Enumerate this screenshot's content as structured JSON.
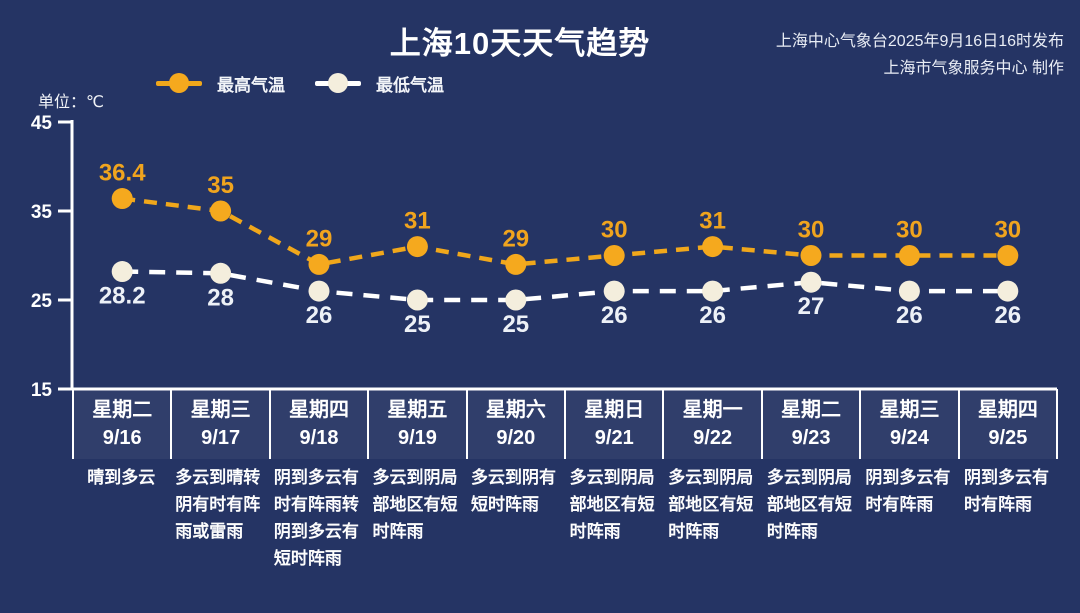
{
  "title": "上海10天天气趋势",
  "source": {
    "line1": "上海中心气象台2025年9月16日16时发布",
    "line2": "上海市气象服务中心 制作"
  },
  "unit_label": "单位：℃",
  "legend": {
    "max_label": "最高气温",
    "min_label": "最低气温"
  },
  "colors": {
    "background": "#253464",
    "axis": "#ffffff",
    "max_line": "#f0a71b",
    "max_point": "#f5a91e",
    "max_label": "#f0a41e",
    "min_line": "#ffffff",
    "min_point": "#f4eedd",
    "min_label": "#edf1f7"
  },
  "chart_data": {
    "type": "line",
    "title": "上海10天天气趋势",
    "ylabel": "单位：℃",
    "ylim": [
      15,
      45
    ],
    "yticks": [
      45,
      35,
      25,
      15
    ],
    "grid": false,
    "legend_position": "top-left",
    "categories": [
      "9/16",
      "9/17",
      "9/18",
      "9/19",
      "9/20",
      "9/21",
      "9/22",
      "9/23",
      "9/24",
      "9/25"
    ],
    "series": [
      {
        "name": "最高气温",
        "values": [
          36.4,
          35,
          29,
          31,
          29,
          30,
          31,
          30,
          30,
          30
        ]
      },
      {
        "name": "最低气温",
        "values": [
          28.2,
          28,
          26,
          25,
          25,
          26,
          26,
          27,
          26,
          26
        ]
      }
    ]
  },
  "days": [
    {
      "weekday": "星期二",
      "date": "9/16",
      "weather": "晴到多云"
    },
    {
      "weekday": "星期三",
      "date": "9/17",
      "weather": "多云到晴转阴有时有阵雨或雷雨"
    },
    {
      "weekday": "星期四",
      "date": "9/18",
      "weather": "阴到多云有时有阵雨转阴到多云有短时阵雨"
    },
    {
      "weekday": "星期五",
      "date": "9/19",
      "weather": "多云到阴局部地区有短时阵雨"
    },
    {
      "weekday": "星期六",
      "date": "9/20",
      "weather": "多云到阴有短时阵雨"
    },
    {
      "weekday": "星期日",
      "date": "9/21",
      "weather": "多云到阴局部地区有短时阵雨"
    },
    {
      "weekday": "星期一",
      "date": "9/22",
      "weather": "多云到阴局部地区有短时阵雨"
    },
    {
      "weekday": "星期二",
      "date": "9/23",
      "weather": "多云到阴局部地区有短时阵雨"
    },
    {
      "weekday": "星期三",
      "date": "9/24",
      "weather": "阴到多云有时有阵雨"
    },
    {
      "weekday": "星期四",
      "date": "9/25",
      "weather": "阴到多云有时有阵雨"
    }
  ]
}
